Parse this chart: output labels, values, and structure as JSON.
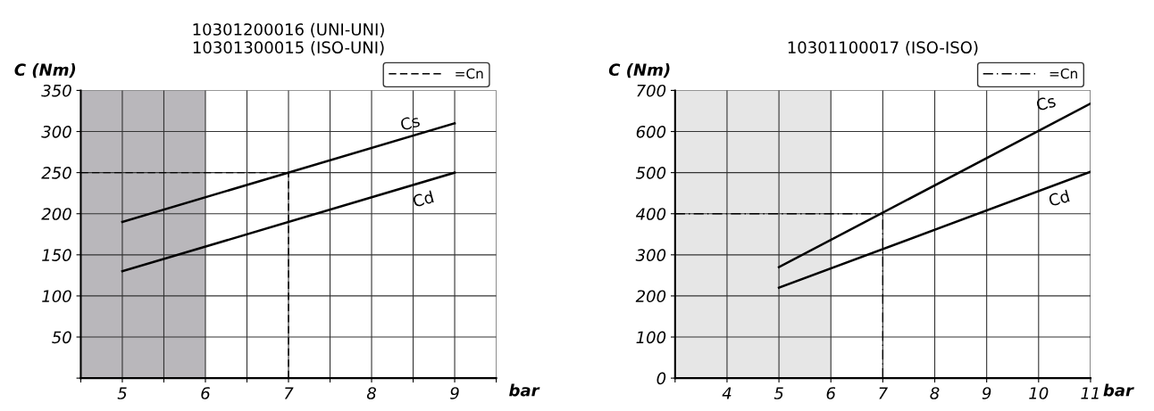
{
  "chart_data": [
    {
      "type": "line",
      "title": "10301200016 (UNI-UNI)\n10301300015 (ISO-UNI)",
      "xlabel": "bar",
      "ylabel": "C (Nm)",
      "x": [
        5,
        9
      ],
      "series": [
        {
          "name": "Cs",
          "color": "#000000",
          "values": [
            190,
            310
          ]
        },
        {
          "name": "Cd",
          "color": "#000000",
          "values": [
            130,
            250
          ]
        }
      ],
      "xlim": [
        4.5,
        9.5
      ],
      "ylim": [
        0,
        350
      ],
      "xticks": [
        {
          "value": 4.5,
          "label": null
        },
        5,
        {
          "value": 5.5,
          "label": null
        },
        6,
        {
          "value": 6.5,
          "label": null
        },
        7,
        {
          "value": 7.5,
          "label": null
        },
        8,
        {
          "value": 8.5,
          "label": null
        },
        9,
        {
          "value": 9.5,
          "label": null
        }
      ],
      "yticks": [
        {
          "value": 0,
          "label": null
        },
        50,
        100,
        150,
        200,
        250,
        300,
        350
      ],
      "grid": true,
      "legend": "top right",
      "line_style": "solid",
      "marker": "none",
      "bands": [
        {
          "axis": "x",
          "from": 4.5,
          "to": 6,
          "label": null,
          "color": "#b9b7bb"
        }
      ],
      "ref_lines": [
        {
          "axis": "y",
          "value": 250,
          "label": "=Cn",
          "line_style": "dashed"
        },
        {
          "axis": "x",
          "value": 7,
          "label": null,
          "line_style": "dashed"
        }
      ]
    },
    {
      "type": "line",
      "title": "10301100017 (ISO-ISO)",
      "xlabel": "bar",
      "ylabel": "C (Nm)",
      "x": [
        5,
        11
      ],
      "series": [
        {
          "name": "Cs",
          "color": "#000000",
          "values": [
            270,
            668
          ]
        },
        {
          "name": "Cd",
          "color": "#000000",
          "values": [
            220,
            502
          ]
        }
      ],
      "xlim": [
        3,
        11
      ],
      "ylim": [
        0,
        700
      ],
      "xticks": [
        {
          "value": 3,
          "label": null
        },
        4,
        5,
        6,
        7,
        8,
        9,
        10,
        11
      ],
      "yticks": [
        0,
        100,
        200,
        300,
        400,
        500,
        600,
        700
      ],
      "grid": true,
      "legend": "top right",
      "line_style": "solid",
      "marker": "none",
      "bands": [
        {
          "axis": "x",
          "from": 3,
          "to": 6,
          "label": null,
          "color": "#e6e6e6"
        }
      ],
      "ref_lines": [
        {
          "axis": "y",
          "value": 400,
          "label": "=Cn",
          "line_style": "dashdot"
        },
        {
          "axis": "x",
          "value": 7,
          "label": null,
          "line_style": "dashdot"
        }
      ]
    }
  ]
}
